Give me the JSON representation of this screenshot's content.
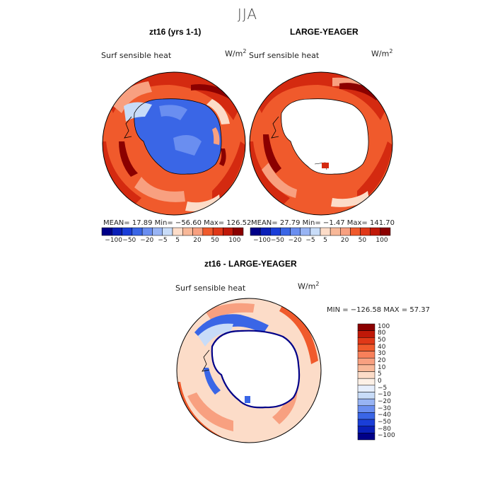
{
  "figure": {
    "title": "JJA",
    "panels": [
      {
        "title": "zt16 (yrs 1-1)",
        "variable": "Surf sensible heat",
        "units": "W/m",
        "units_exp": "2",
        "stats": {
          "mean_label": "MEAN=",
          "mean": "17.89",
          "min_label": "Min=",
          "min": "-56.60",
          "max_label": "Max=",
          "max": "126.52"
        },
        "stats_text": "MEAN=   17.89   Min=  −56.60   Max=  126.52"
      },
      {
        "title": "LARGE-YEAGER",
        "variable": "Surf sensible heat",
        "units": "W/m",
        "units_exp": "2",
        "stats": {
          "mean_label": "MEAN=",
          "mean": "27.79",
          "min_label": "Min=",
          "min": "-1.47",
          "max_label": "Max=",
          "max": "141.70"
        },
        "stats_text": "MEAN=   27.79   Min=   −1.47   Max=  141.70"
      },
      {
        "title": "zt16 - LARGE-YEAGER",
        "variable": "Surf sensible heat",
        "units": "W/m",
        "units_exp": "2",
        "stats_text": "MIN = −126.58  MAX =  57.37"
      }
    ],
    "horiz_colorbar_ticks": [
      "−100",
      "−50",
      "−20",
      "−5",
      "5",
      "20",
      "50",
      "100"
    ],
    "vert_colorbar_ticks": [
      "100",
      "80",
      "50",
      "40",
      "30",
      "20",
      "10",
      "5",
      "0",
      "−5",
      "−10",
      "−20",
      "−30",
      "−40",
      "−50",
      "−80",
      "−100"
    ],
    "colors": {
      "ocean_white": "#ffffff",
      "deep_red": "#8b0000",
      "red": "#d42a10",
      "orange_red": "#f05a2c",
      "salmon": "#f8a080",
      "peach": "#fcdcc8",
      "light_blue": "#c8dcf8",
      "blue": "#3a66e6",
      "navy": "#000088"
    }
  }
}
